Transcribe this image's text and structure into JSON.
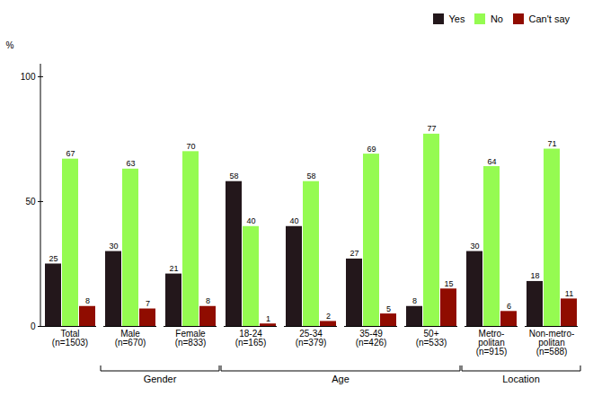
{
  "chart_data": {
    "type": "bar",
    "categories": [
      "Total\n(n=1503)",
      "Male\n(n=670)",
      "Female\n(n=833)",
      "18-24\n(n=165)",
      "25-34\n(n=379)",
      "35-49\n(n=426)",
      "50+\n(n=533)",
      "Metro-\npolitan\n(n=915)",
      "Non-metro-\npolitan\n(n=588)"
    ],
    "series": [
      {
        "name": "Yes",
        "values": [
          25,
          30,
          21,
          58,
          40,
          27,
          8,
          30,
          18
        ]
      },
      {
        "name": "No",
        "values": [
          67,
          63,
          70,
          40,
          58,
          69,
          77,
          64,
          71
        ]
      },
      {
        "name": "Can't say",
        "values": [
          8,
          7,
          8,
          1,
          2,
          5,
          15,
          6,
          11
        ]
      }
    ],
    "ylabel": "%",
    "ylim": [
      0,
      105
    ],
    "yticks": [
      0,
      50,
      100
    ],
    "data_labels": true,
    "legend": "upper right",
    "annotations": [
      {
        "text": "Gender",
        "from": "Male\n(n=670)",
        "to": "Female\n(n=833)"
      },
      {
        "text": "Age",
        "from": "18-24\n(n=165)",
        "to": "50+\n(n=533)"
      },
      {
        "text": "Location",
        "from": "Metro-\npolitan\n(n=915)",
        "to": "Non-metro-\npolitan\n(n=588)"
      }
    ]
  }
}
